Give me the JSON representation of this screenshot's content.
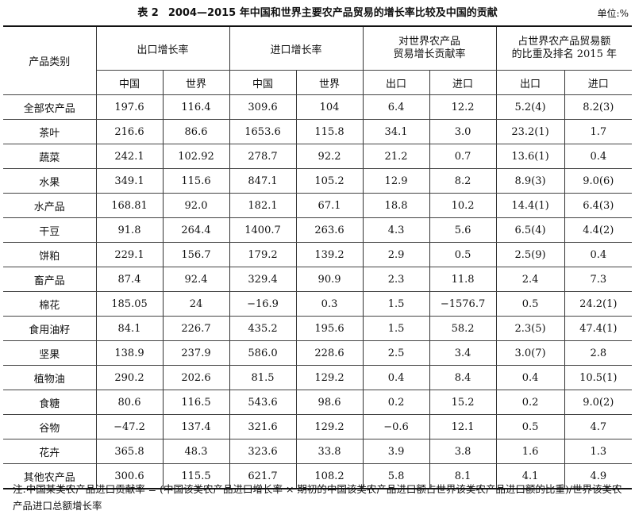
{
  "table": {
    "number": "表 2",
    "title": "2004—2015 年中国和世界主要农产品贸易的增长率比较及中国的贡献",
    "unit": "单位:%",
    "header": {
      "category": "产品类别",
      "export_growth": "出口增长率",
      "import_growth": "进口增长率",
      "contribution": [
        "对世界农产品",
        "贸易增长贡献率"
      ],
      "share": [
        "占世界农产品贸易额",
        "的比重及排名 2015 年"
      ],
      "china": "中国",
      "world": "世界",
      "export": "出口",
      "import": "进口"
    },
    "rows": [
      {
        "name": "全部农产品",
        "ex_cn": "197.6",
        "ex_w": "116.4",
        "im_cn": "309.6",
        "im_w": "104",
        "con_ex": "6.4",
        "con_im": "12.2",
        "sh_ex": "5.2(4)",
        "sh_im": "8.2(3)"
      },
      {
        "name": "茶叶",
        "ex_cn": "216.6",
        "ex_w": "86.6",
        "im_cn": "1653.6",
        "im_w": "115.8",
        "con_ex": "34.1",
        "con_im": "3.0",
        "sh_ex": "23.2(1)",
        "sh_im": "1.7"
      },
      {
        "name": "蔬菜",
        "ex_cn": "242.1",
        "ex_w": "102.92",
        "im_cn": "278.7",
        "im_w": "92.2",
        "con_ex": "21.2",
        "con_im": "0.7",
        "sh_ex": "13.6(1)",
        "sh_im": "0.4"
      },
      {
        "name": "水果",
        "ex_cn": "349.1",
        "ex_w": "115.6",
        "im_cn": "847.1",
        "im_w": "105.2",
        "con_ex": "12.9",
        "con_im": "8.2",
        "sh_ex": "8.9(3)",
        "sh_im": "9.0(6)"
      },
      {
        "name": "水产品",
        "ex_cn": "168.81",
        "ex_w": "92.0",
        "im_cn": "182.1",
        "im_w": "67.1",
        "con_ex": "18.8",
        "con_im": "10.2",
        "sh_ex": "14.4(1)",
        "sh_im": "6.4(3)"
      },
      {
        "name": "干豆",
        "ex_cn": "91.8",
        "ex_w": "264.4",
        "im_cn": "1400.7",
        "im_w": "263.6",
        "con_ex": "4.3",
        "con_im": "5.6",
        "sh_ex": "6.5(4)",
        "sh_im": "4.4(2)"
      },
      {
        "name": "饼粕",
        "ex_cn": "229.1",
        "ex_w": "156.7",
        "im_cn": "179.2",
        "im_w": "139.2",
        "con_ex": "2.9",
        "con_im": "0.5",
        "sh_ex": "2.5(9)",
        "sh_im": "0.4"
      },
      {
        "name": "畜产品",
        "ex_cn": "87.4",
        "ex_w": "92.4",
        "im_cn": "329.4",
        "im_w": "90.9",
        "con_ex": "2.3",
        "con_im": "11.8",
        "sh_ex": "2.4",
        "sh_im": "7.3"
      },
      {
        "name": "棉花",
        "ex_cn": "185.05",
        "ex_w": "24",
        "im_cn": "−16.9",
        "im_w": "0.3",
        "con_ex": "1.5",
        "con_im": "−1576.7",
        "sh_ex": "0.5",
        "sh_im": "24.2(1)"
      },
      {
        "name": "食用油籽",
        "ex_cn": "84.1",
        "ex_w": "226.7",
        "im_cn": "435.2",
        "im_w": "195.6",
        "con_ex": "1.5",
        "con_im": "58.2",
        "sh_ex": "2.3(5)",
        "sh_im": "47.4(1)"
      },
      {
        "name": "坚果",
        "ex_cn": "138.9",
        "ex_w": "237.9",
        "im_cn": "586.0",
        "im_w": "228.6",
        "con_ex": "2.5",
        "con_im": "3.4",
        "sh_ex": "3.0(7)",
        "sh_im": "2.8"
      },
      {
        "name": "植物油",
        "ex_cn": "290.2",
        "ex_w": "202.6",
        "im_cn": "81.5",
        "im_w": "129.2",
        "con_ex": "0.4",
        "con_im": "8.4",
        "sh_ex": "0.4",
        "sh_im": "10.5(1)"
      },
      {
        "name": "食糖",
        "ex_cn": "80.6",
        "ex_w": "116.5",
        "im_cn": "543.6",
        "im_w": "98.6",
        "con_ex": "0.2",
        "con_im": "15.2",
        "sh_ex": "0.2",
        "sh_im": "9.0(2)"
      },
      {
        "name": "谷物",
        "ex_cn": "−47.2",
        "ex_w": "137.4",
        "im_cn": "321.6",
        "im_w": "129.2",
        "con_ex": "−0.6",
        "con_im": "12.1",
        "sh_ex": "0.5",
        "sh_im": "4.7"
      },
      {
        "name": "花卉",
        "ex_cn": "365.8",
        "ex_w": "48.3",
        "im_cn": "323.6",
        "im_w": "33.8",
        "con_ex": "3.9",
        "con_im": "3.8",
        "sh_ex": "1.6",
        "sh_im": "1.3"
      },
      {
        "name": "其他农产品",
        "ex_cn": "300.6",
        "ex_w": "115.5",
        "im_cn": "621.7",
        "im_w": "108.2",
        "con_ex": "5.8",
        "con_im": "8.1",
        "sh_ex": "4.1",
        "sh_im": "4.9"
      }
    ],
    "note": "注:中国某类农产品进口贡献率 = (中国该类农产品进口增长率 × 期初的中国该类农产品进口额占世界该类农产品进口额的比重)/世界该类农产品进口总额增长率"
  }
}
